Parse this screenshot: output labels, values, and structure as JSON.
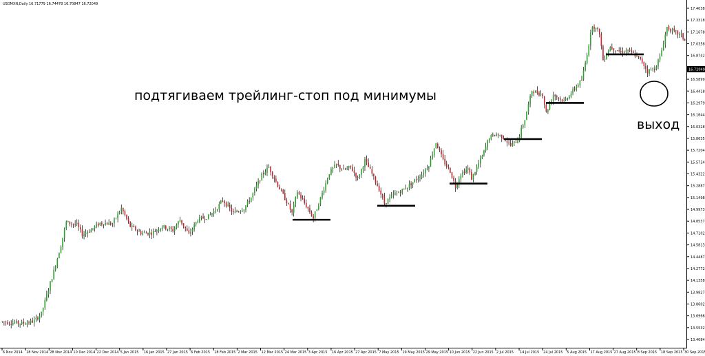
{
  "header": {
    "symbol_line": "USDMXN,Daily 16.71779 16.74478 16.70847 16.72049"
  },
  "annotations": {
    "main": "подтягиваем трейлинг-стоп под минимумы",
    "exit": "выход"
  },
  "colors": {
    "bull": "#2aa02a",
    "bear": "#c0262b",
    "wick": "#000000",
    "axis": "#000000",
    "stop_line": "#000000",
    "price_box_bg": "#000000",
    "price_box_text": "#ffffff"
  },
  "chart_data": {
    "type": "candlestick",
    "title": "",
    "xlabel": "",
    "ylabel": "",
    "ylim": [
      13.3,
      17.4
    ],
    "grid": false,
    "current_price": "16.72049",
    "y_ticks": [
      "17.40380",
      "17.33180",
      "17.16780",
      "17.03585",
      "16.87420",
      "16.72049",
      "16.58990",
      "16.44180",
      "16.29795",
      "16.16440",
      "16.03280",
      "15.86350",
      "15.72040",
      "15.57340",
      "15.43220",
      "15.28870",
      "15.14980",
      "14.99730",
      "14.85370",
      "14.71020",
      "14.58130",
      "14.44870",
      "14.27720",
      "14.13580",
      "13.98270",
      "13.86020",
      "13.69660",
      "13.55320",
      "13.40840"
    ],
    "x_ticks": [
      "6 Nov 2014",
      "18 Nov 2014",
      "28 Nov 2014",
      "10 Dec 2014",
      "22 Dec 2014",
      "5 Jan 2015",
      "16 Jan 2015",
      "27 Jan 2015",
      "6 Feb 2015",
      "18 Feb 2015",
      "2 Mar 2015",
      "12 Mar 2015",
      "24 Mar 2015",
      "3 Apr 2015",
      "16 Apr 2015",
      "27 Apr 2015",
      "7 May 2015",
      "19 May 2015",
      "29 May 2015",
      "10 Jun 2015",
      "22 Jun 2015",
      "2 Jul 2015",
      "14 Jul 2015",
      "24 Jul 2015",
      "5 Aug 2015",
      "17 Aug 2015",
      "27 Aug 2015",
      "8 Sep 2015",
      "18 Sep 2015",
      "30 Sep 2015"
    ],
    "anchors": [
      [
        0,
        13.54
      ],
      [
        12,
        13.52
      ],
      [
        18,
        13.55
      ],
      [
        22,
        13.64
      ],
      [
        28,
        14.08
      ],
      [
        33,
        14.47
      ],
      [
        36,
        14.75
      ],
      [
        42,
        14.72
      ],
      [
        45,
        14.6
      ],
      [
        50,
        14.66
      ],
      [
        55,
        14.74
      ],
      [
        62,
        14.73
      ],
      [
        67,
        14.92
      ],
      [
        72,
        14.7
      ],
      [
        78,
        14.62
      ],
      [
        84,
        14.62
      ],
      [
        90,
        14.7
      ],
      [
        96,
        14.65
      ],
      [
        100,
        14.78
      ],
      [
        105,
        14.6
      ],
      [
        110,
        14.78
      ],
      [
        116,
        14.82
      ],
      [
        120,
        14.9
      ],
      [
        124,
        15.02
      ],
      [
        130,
        14.86
      ],
      [
        136,
        14.92
      ],
      [
        140,
        15.05
      ],
      [
        146,
        15.32
      ],
      [
        150,
        15.42
      ],
      [
        155,
        15.2
      ],
      [
        160,
        15.0
      ],
      [
        163,
        14.86
      ],
      [
        166,
        15.12
      ],
      [
        168,
        15.05
      ],
      [
        171,
        14.95
      ],
      [
        175,
        14.8
      ],
      [
        180,
        15.1
      ],
      [
        184,
        15.35
      ],
      [
        188,
        15.45
      ],
      [
        192,
        15.38
      ],
      [
        196,
        15.42
      ],
      [
        200,
        15.28
      ],
      [
        204,
        15.5
      ],
      [
        207,
        15.38
      ],
      [
        212,
        15.15
      ],
      [
        215,
        14.98
      ],
      [
        220,
        15.08
      ],
      [
        226,
        15.15
      ],
      [
        230,
        15.22
      ],
      [
        236,
        15.33
      ],
      [
        240,
        15.45
      ],
      [
        244,
        15.72
      ],
      [
        248,
        15.5
      ],
      [
        252,
        15.37
      ],
      [
        255,
        15.18
      ],
      [
        258,
        15.34
      ],
      [
        262,
        15.4
      ],
      [
        264,
        15.28
      ],
      [
        270,
        15.55
      ],
      [
        274,
        15.78
      ],
      [
        278,
        15.82
      ],
      [
        282,
        15.78
      ],
      [
        286,
        15.68
      ],
      [
        290,
        15.75
      ],
      [
        294,
        16.0
      ],
      [
        298,
        16.35
      ],
      [
        304,
        16.3
      ],
      [
        306,
        16.08
      ],
      [
        310,
        16.3
      ],
      [
        316,
        16.22
      ],
      [
        320,
        16.32
      ],
      [
        326,
        16.48
      ],
      [
        328,
        16.68
      ],
      [
        332,
        17.15
      ],
      [
        336,
        17.05
      ],
      [
        338,
        16.72
      ],
      [
        342,
        16.88
      ],
      [
        348,
        16.82
      ],
      [
        352,
        16.84
      ],
      [
        356,
        16.78
      ],
      [
        360,
        16.7
      ],
      [
        363,
        16.58
      ],
      [
        367,
        16.62
      ],
      [
        370,
        16.75
      ],
      [
        374,
        17.12
      ],
      [
        378,
        17.06
      ],
      [
        382,
        17.02
      ],
      [
        384,
        16.96
      ]
    ],
    "stop_levels": [
      {
        "x": [
          425,
          480
        ],
        "y": 14.78
      },
      {
        "x": [
          548,
          603
        ],
        "y": 14.95
      },
      {
        "x": [
          653,
          708
        ],
        "y": 15.22
      },
      {
        "x": [
          732,
          787
        ],
        "y": 15.76
      },
      {
        "x": [
          793,
          848
        ],
        "y": 16.2
      },
      {
        "x": [
          880,
          935
        ],
        "y": 16.79
      }
    ]
  }
}
